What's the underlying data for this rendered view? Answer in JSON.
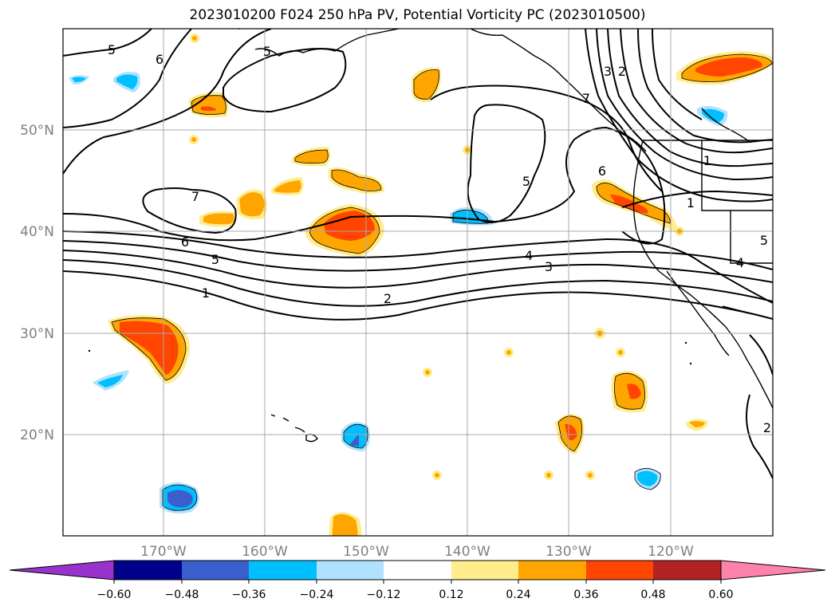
{
  "title": "2023010200 F024 250 hPa PV, Potential Vorticity PC (2023010500)",
  "map": {
    "lat_labels": [
      "50°N",
      "40°N",
      "30°N",
      "20°N"
    ],
    "lon_labels": [
      "170°W",
      "160°W",
      "150°W",
      "140°W",
      "130°W",
      "120°W"
    ],
    "contour_labels": [
      "5",
      "6",
      "7",
      "5",
      "6",
      "5",
      "1",
      "3",
      "2",
      "6",
      "1",
      "4",
      "3",
      "2",
      "7",
      "1",
      "5",
      "4",
      "5",
      "2"
    ]
  },
  "colorbar": {
    "ticks": [
      "−0.60",
      "−0.48",
      "−0.36",
      "−0.24",
      "−0.12",
      "0.12",
      "0.24",
      "0.36",
      "0.48",
      "0.60"
    ],
    "colors": [
      "#9932CC",
      "#00008B",
      "#3A5FCD",
      "#00BFFF",
      "#B0E2FF",
      "#FFFFFF",
      "#FFEC8B",
      "#FFA500",
      "#FF4500",
      "#B22222",
      "#FF82AB"
    ]
  }
}
